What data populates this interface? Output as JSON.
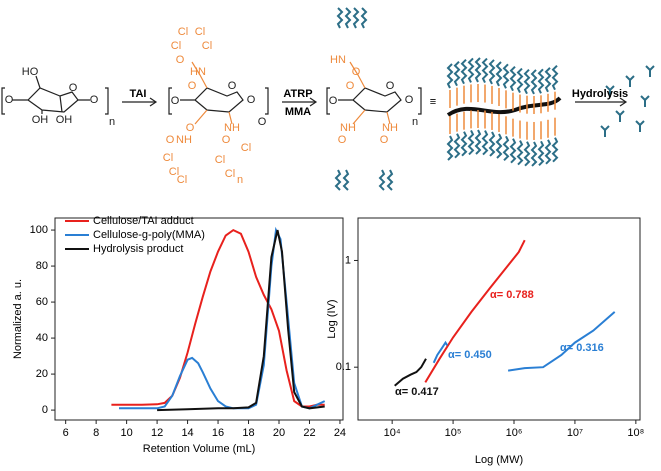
{
  "scheme": {
    "labels": [
      "HO",
      "O",
      "O",
      "O",
      "OH",
      "OH",
      "n",
      "Cl",
      "Cl",
      "Cl",
      "Cl",
      "O",
      "HN",
      "O",
      "O",
      "O",
      "O",
      "O",
      "NH",
      "O",
      "NH",
      "O",
      "Cl",
      "Cl",
      "Cl",
      "Cl",
      "Cl",
      "Cl",
      "n",
      "O",
      "HN",
      "O",
      "O",
      "O",
      "O",
      "O",
      "NH",
      "O",
      "NH",
      "O",
      "n"
    ],
    "arrows": [
      "TAI",
      "ATRP",
      "MMA",
      "Hydrolysis"
    ],
    "equivalence": "≡"
  },
  "chart_data": [
    {
      "type": "line",
      "xlabel": "Retention Volume (mL)",
      "ylabel": "Normalized a. u.",
      "xlim": [
        5.3,
        24.2
      ],
      "ylim": [
        -5.5,
        106.7
      ],
      "xticks": [
        6,
        8,
        10,
        12,
        14,
        16,
        18,
        20,
        22,
        24
      ],
      "yticks": [
        0,
        20,
        40,
        60,
        80,
        100
      ],
      "legend": "upper left",
      "series": [
        {
          "name": "Cellulose/TAI adduct",
          "color": "#e8211d",
          "x": [
            9,
            10,
            11,
            12,
            12.5,
            13,
            13.5,
            14,
            14.5,
            15,
            15.5,
            16,
            16.5,
            17,
            17.5,
            18,
            18.5,
            19,
            19.5,
            20,
            20.5,
            21,
            21.5,
            22,
            22.5,
            23
          ],
          "values": [
            3,
            3,
            3,
            3.2,
            4,
            8,
            18,
            32,
            48,
            63,
            77,
            88,
            97,
            100,
            98,
            88,
            74,
            64,
            56,
            44,
            22,
            5,
            2,
            2,
            3,
            3
          ]
        },
        {
          "name": "Cellulose-g-poly(MMA)",
          "color": "#2a7fd4",
          "x": [
            9.5,
            12,
            12.5,
            13,
            13.5,
            14,
            14.3,
            14.7,
            15,
            15.5,
            16,
            16.5,
            17,
            18,
            18.5,
            19,
            19.5,
            19.8,
            20.1,
            20.5,
            21,
            21.5,
            22,
            22.5,
            23
          ],
          "values": [
            1,
            1,
            2,
            8,
            19,
            28,
            29,
            26,
            21,
            12,
            5,
            2,
            1,
            1,
            3,
            25,
            80,
            100,
            95,
            60,
            15,
            2,
            1,
            3,
            5
          ]
        },
        {
          "name": "Hydrolysis product",
          "color": "#111111",
          "x": [
            12,
            14,
            16,
            17,
            18,
            18.5,
            19,
            19.5,
            19.9,
            20.2,
            20.6,
            21,
            21.5,
            22,
            23
          ],
          "values": [
            0,
            0.5,
            1,
            1,
            1.5,
            4,
            30,
            85,
            100,
            88,
            45,
            10,
            2,
            1,
            2
          ]
        }
      ]
    },
    {
      "type": "line",
      "xlabel": "Log (MW)",
      "ylabel": "Log (IV)",
      "xscale": "log",
      "yscale": "log",
      "xlim": [
        2750,
        117000000
      ],
      "ylim": [
        0.032,
        2.5
      ],
      "xticks": [
        {
          "value": 10000,
          "label": "10⁴"
        },
        {
          "value": 100000,
          "label": "10⁵"
        },
        {
          "value": 1000000,
          "label": "10⁶"
        },
        {
          "value": 10000000,
          "label": "10⁷"
        },
        {
          "value": 100000000,
          "label": "10⁸"
        }
      ],
      "yticks": [
        0.1,
        1
      ],
      "series": [
        {
          "color": "#e8211d",
          "x": [
            35000,
            60000,
            100000,
            200000,
            400000,
            800000,
            1200000,
            1500000
          ],
          "values": [
            0.072,
            0.12,
            0.19,
            0.33,
            0.55,
            0.9,
            1.2,
            1.55
          ]
        },
        {
          "color": "#111111",
          "x": [
            11000,
            15000,
            20000,
            25000,
            30000,
            36000
          ],
          "values": [
            0.067,
            0.078,
            0.085,
            0.09,
            0.1,
            0.12
          ]
        },
        {
          "color": "#2a7fd4",
          "x": [
            48000,
            55000,
            65000,
            75000,
            80000,
            null,
            800000,
            1500000,
            3000000,
            6000000,
            10000000,
            20000000,
            45000000
          ],
          "values": [
            0.11,
            0.13,
            0.15,
            0.17,
            0.16,
            null,
            0.093,
            0.098,
            0.1,
            0.13,
            0.17,
            0.22,
            0.33
          ]
        }
      ],
      "annotations": [
        {
          "text": "α= 0.788",
          "color": "#e8211d"
        },
        {
          "text": "α= 0.450",
          "color": "#2a7fd4"
        },
        {
          "text": "α= 0.316",
          "color": "#2a7fd4"
        },
        {
          "text": "α= 0.417",
          "color": "#111111"
        }
      ]
    }
  ]
}
